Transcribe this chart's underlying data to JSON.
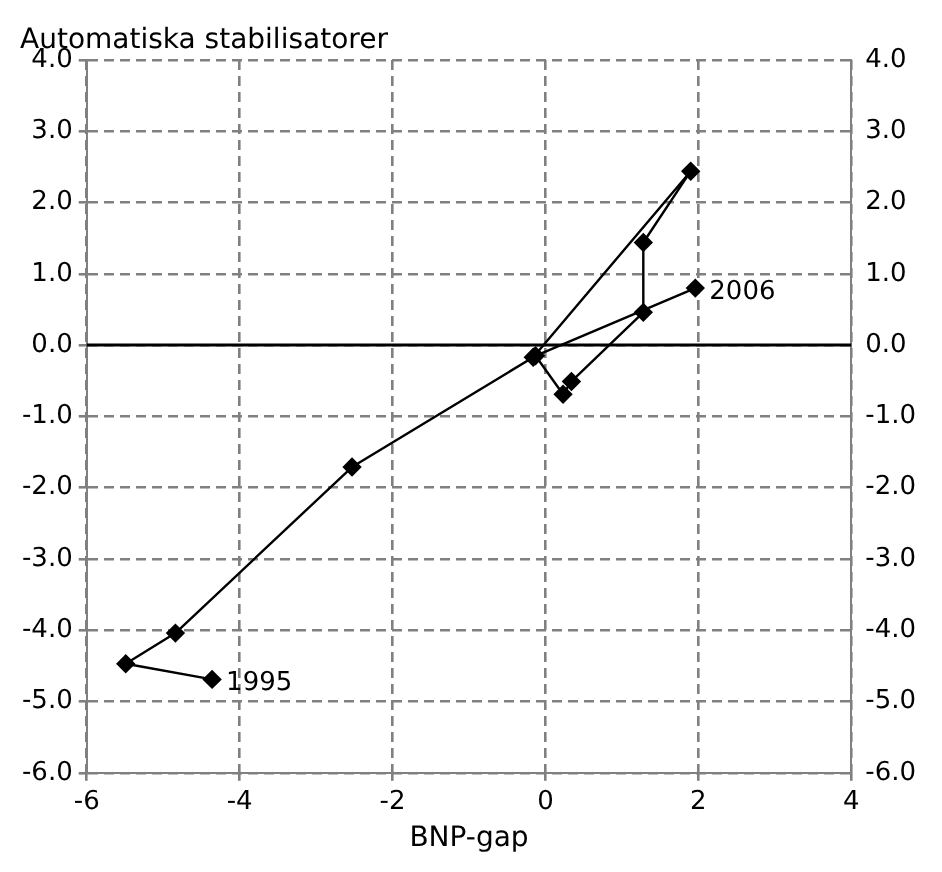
{
  "chart_data": {
    "type": "line",
    "ylabel": "Automatiska stabilisatorer",
    "xlabel": "BNP-gap",
    "series": [
      {
        "color": "#000000",
        "x": [
          -4.36,
          -5.49,
          -4.84,
          -2.53,
          -0.16,
          1.9,
          1.28,
          1.28,
          0.34,
          0.23,
          -0.13,
          1.96
        ],
        "values": [
          -4.69,
          -4.47,
          -4.04,
          -1.71,
          -0.17,
          2.44,
          1.44,
          0.46,
          -0.51,
          -0.69,
          -0.15,
          0.8
        ]
      }
    ],
    "xlim": [
      -6,
      4
    ],
    "xticks": [
      -6,
      -4,
      -2,
      0,
      2,
      4
    ],
    "ylim": [
      -6,
      4
    ],
    "yticks": [
      {
        "value": -6,
        "label": "-6.0"
      },
      {
        "value": -5,
        "label": "-5.0"
      },
      {
        "value": -4,
        "label": "-4.0"
      },
      {
        "value": -3,
        "label": "-3.0"
      },
      {
        "value": -2,
        "label": "-2.0"
      },
      {
        "value": -1,
        "label": "-1.0"
      },
      {
        "value": 0,
        "label": "0.0"
      },
      {
        "value": 1,
        "label": "1.0"
      },
      {
        "value": 2,
        "label": "2.0"
      },
      {
        "value": 3,
        "label": "3.0"
      },
      {
        "value": 4,
        "label": "4.0"
      }
    ],
    "y2lim": [
      -6,
      4
    ],
    "y2ticks": [
      {
        "value": -6,
        "label": "-6.0"
      },
      {
        "value": -5,
        "label": "-5.0"
      },
      {
        "value": -4,
        "label": "-4.0"
      },
      {
        "value": -3,
        "label": "-3.0"
      },
      {
        "value": -2,
        "label": "-2.0"
      },
      {
        "value": -1,
        "label": "-1.0"
      },
      {
        "value": 0,
        "label": "0.0"
      },
      {
        "value": 1,
        "label": "1.0"
      },
      {
        "value": 2,
        "label": "2.0"
      },
      {
        "value": 3,
        "label": "3.0"
      },
      {
        "value": 4,
        "label": "4.0"
      }
    ],
    "ref_lines": [
      {
        "axis": "y",
        "value": 0,
        "color": "#000000",
        "line_style": "solid"
      }
    ],
    "annotations": [
      {
        "text": "1995",
        "x": -4.36,
        "y": -4.69
      },
      {
        "text": "2006",
        "x": 1.96,
        "y": 0.8
      }
    ],
    "grid": true,
    "marker": "diamond",
    "line_style": "solid",
    "legend": false
  }
}
